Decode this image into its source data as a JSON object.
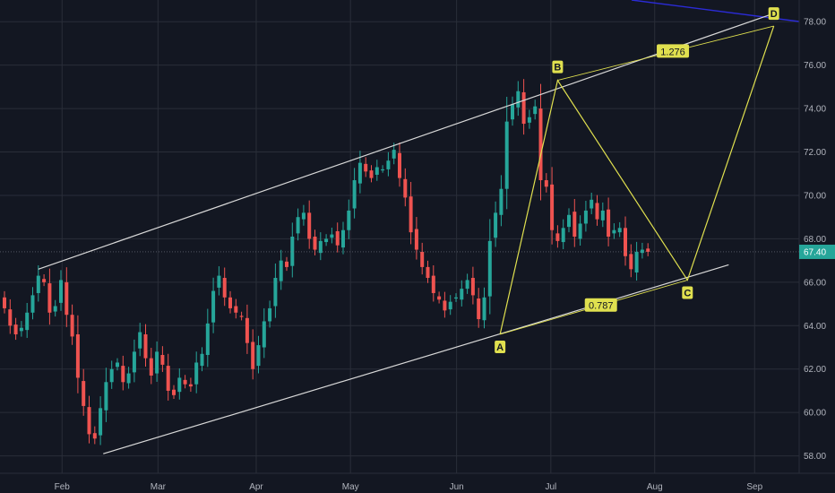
{
  "chart_data": {
    "type": "candlestick",
    "colors": {
      "background": "#131722",
      "grid": "#2a2e39",
      "up": "#26a69a",
      "down": "#ef5350",
      "pattern": "#e0e04f",
      "channel": "#d8d8d8",
      "axis_text": "#b2b5be"
    },
    "x_ticks": [
      "Feb",
      "Mar",
      "Apr",
      "May",
      "Jun",
      "Jul",
      "Aug",
      "Sep"
    ],
    "y_ticks": [
      "58.00",
      "60.00",
      "62.00",
      "64.00",
      "66.00",
      "68.00",
      "70.00",
      "72.00",
      "74.00",
      "76.00",
      "78.00"
    ],
    "ylim": [
      57.2,
      79.0
    ],
    "last_price": 67.4,
    "last_price_label": "67.40",
    "closes": [
      64.8,
      64.0,
      63.6,
      63.9,
      64.6,
      65.4,
      66.3,
      66.0,
      64.6,
      64.9,
      66.1,
      64.5,
      63.5,
      61.6,
      60.3,
      59.0,
      58.8,
      60.2,
      61.4,
      62.0,
      62.3,
      61.4,
      61.8,
      62.8,
      63.7,
      62.5,
      61.7,
      62.8,
      62.2,
      61.0,
      60.8,
      61.6,
      61.3,
      61.2,
      62.3,
      62.7,
      64.1,
      65.6,
      66.3,
      65.3,
      64.8,
      64.6,
      64.4,
      63.2,
      62.0,
      63.1,
      64.2,
      64.8,
      66.2,
      67.0,
      66.7,
      68.1,
      69.0,
      69.2,
      68.0,
      67.5,
      67.9,
      68.0,
      68.2,
      67.7,
      68.4,
      69.3,
      70.7,
      71.5,
      71.1,
      70.8,
      71.3,
      71.2,
      71.6,
      72.1,
      70.8,
      69.9,
      68.3,
      67.5,
      66.7,
      66.2,
      65.5,
      65.2,
      64.7,
      65.1,
      65.3,
      65.7,
      66.1,
      65.4,
      64.3,
      65.3,
      67.9,
      69.2,
      70.3,
      73.4,
      74.2,
      74.8,
      73.3,
      73.6,
      74.1,
      70.7,
      70.4,
      68.4,
      67.9,
      68.5,
      69.1,
      68.1,
      68.7,
      69.3,
      69.8,
      68.9,
      69.3,
      68.1,
      68.4,
      68.5,
      67.2,
      66.6,
      67.4,
      67.5,
      67.4
    ],
    "channel_values": {
      "upper_start": 66.6,
      "upper_end": 78.4,
      "lower_start": 58.1,
      "lower_end": 66.8
    },
    "harmonic_pattern": {
      "points": [
        {
          "label": "A",
          "value": 63.6
        },
        {
          "label": "B",
          "value": 75.3
        },
        {
          "label": "C",
          "value": 66.1
        },
        {
          "label": "D",
          "value": 77.8
        }
      ],
      "ratios": [
        "0.787",
        "1.276"
      ]
    },
    "offscreen_line_color": "#2b2bd6"
  }
}
